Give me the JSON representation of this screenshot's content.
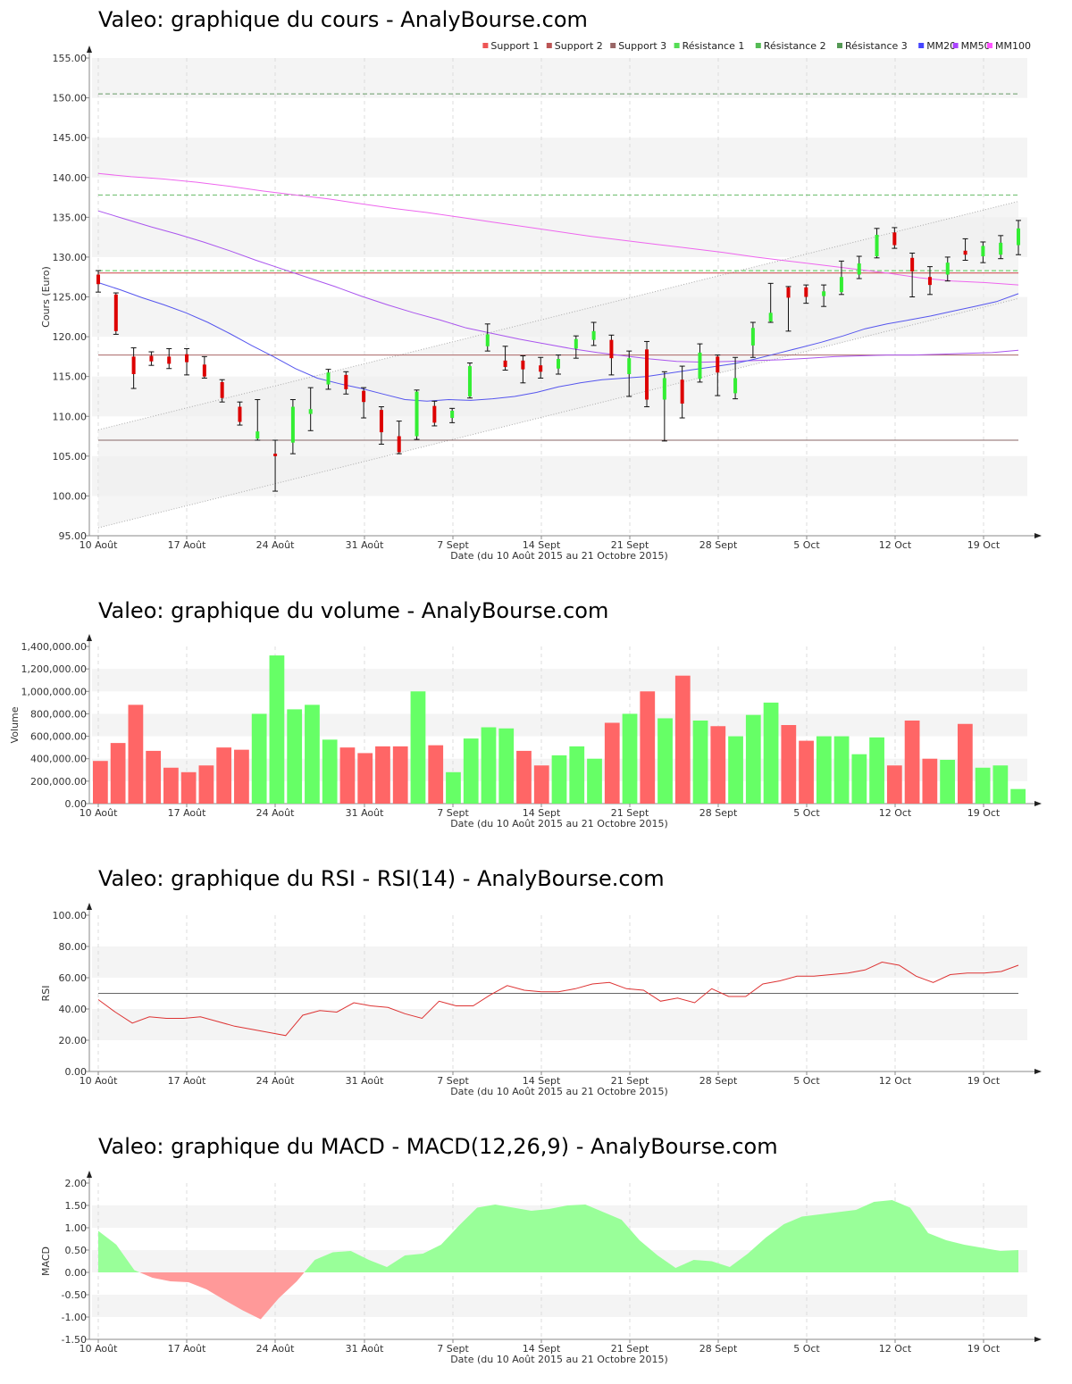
{
  "panels": {
    "price": {
      "title": "Valeo: graphique du cours - AnalyBourse.com"
    },
    "volume": {
      "title": "Valeo: graphique du volume - AnalyBourse.com"
    },
    "rsi": {
      "title": "Valeo: graphique du RSI - RSI(14) - AnalyBourse.com"
    },
    "macd": {
      "title": "Valeo: graphique du MACD - MACD(12,26,9) - AnalyBourse.com"
    }
  },
  "chart_data": [
    {
      "type": "candlestick",
      "title": "Valeo: graphique du cours - AnalyBourse.com",
      "xlabel": "Date (du 10 Août 2015 au 21 Octobre 2015)",
      "ylabel": "Cours (Euro)",
      "ylim": [
        95,
        155
      ],
      "yticks": [
        "95.00",
        "100.00",
        "105.00",
        "110.00",
        "115.00",
        "120.00",
        "125.00",
        "130.00",
        "135.00",
        "140.00",
        "145.00",
        "150.00",
        "155.00"
      ],
      "xticks": [
        "10 Août",
        "17 Août",
        "24 Août",
        "31 Août",
        "7 Sept",
        "14 Sept",
        "21 Sept",
        "28 Sept",
        "5 Oct",
        "12 Oct",
        "19 Oct"
      ],
      "legend": [
        "Support 1",
        "Support 2",
        "Support 3",
        "Résistance 1",
        "Résistance 2",
        "Résistance 3",
        "MM20",
        "MM50",
        "MM100"
      ],
      "legend_position": "top-right",
      "colors": {
        "up": "#33ee33",
        "down": "#dd0000",
        "support1": "#cc4444",
        "support2": "#aa6666",
        "support3": "#886666",
        "resistance1": "#55cc55",
        "resistance2": "#66bb66",
        "resistance3": "#669966",
        "mm20": "#5555ee",
        "mm50": "#aa55ee",
        "mm100": "#ee66ee",
        "legend_support1": "#ee5555",
        "legend_support2": "#bb5555",
        "legend_support3": "#996666",
        "legend_resistance1": "#55dd55",
        "legend_resistance2": "#55bb55",
        "legend_resistance3": "#559955",
        "legend_mm20": "#4444ff",
        "legend_mm50": "#aa44ff",
        "legend_mm100": "#ff55ff"
      },
      "levels": {
        "support1": 128.0,
        "support2": 117.7,
        "support3": 107.0,
        "resistance1": 128.3,
        "resistance2": 137.8,
        "resistance3": 150.5
      },
      "channel": {
        "upper": [
          108.3,
          137.0
        ],
        "lower": [
          96.0,
          124.8
        ]
      },
      "candles": [
        {
          "o": 127.8,
          "h": 128.3,
          "l": 125.6,
          "c": 126.6
        },
        {
          "o": 125.3,
          "h": 125.5,
          "l": 120.3,
          "c": 120.7
        },
        {
          "o": 117.5,
          "h": 118.6,
          "l": 113.5,
          "c": 115.3
        },
        {
          "o": 117.6,
          "h": 118.1,
          "l": 116.4,
          "c": 116.9
        },
        {
          "o": 117.5,
          "h": 118.5,
          "l": 116.0,
          "c": 116.6
        },
        {
          "o": 117.8,
          "h": 118.5,
          "l": 115.2,
          "c": 116.8
        },
        {
          "o": 116.5,
          "h": 117.5,
          "l": 114.8,
          "c": 115.0
        },
        {
          "o": 114.3,
          "h": 114.6,
          "l": 111.8,
          "c": 112.3
        },
        {
          "o": 111.2,
          "h": 111.8,
          "l": 108.9,
          "c": 109.3
        },
        {
          "o": 107.2,
          "h": 112.1,
          "l": 107.0,
          "c": 108.1
        },
        {
          "o": 105.3,
          "h": 107.0,
          "l": 100.6,
          "c": 105.0
        },
        {
          "o": 106.7,
          "h": 112.1,
          "l": 105.3,
          "c": 111.2
        },
        {
          "o": 110.3,
          "h": 113.6,
          "l": 108.2,
          "c": 110.9
        },
        {
          "o": 114.0,
          "h": 115.9,
          "l": 113.4,
          "c": 115.5
        },
        {
          "o": 115.2,
          "h": 115.6,
          "l": 112.8,
          "c": 113.4
        },
        {
          "o": 113.2,
          "h": 113.6,
          "l": 109.8,
          "c": 111.8
        },
        {
          "o": 110.8,
          "h": 111.2,
          "l": 106.5,
          "c": 108.0
        },
        {
          "o": 107.5,
          "h": 109.4,
          "l": 105.3,
          "c": 105.5
        },
        {
          "o": 107.5,
          "h": 113.3,
          "l": 107.1,
          "c": 113.1
        },
        {
          "o": 111.3,
          "h": 111.9,
          "l": 108.8,
          "c": 109.2
        },
        {
          "o": 109.8,
          "h": 111.0,
          "l": 109.2,
          "c": 110.7
        },
        {
          "o": 112.5,
          "h": 116.7,
          "l": 112.3,
          "c": 116.3
        },
        {
          "o": 118.8,
          "h": 121.6,
          "l": 118.2,
          "c": 120.3
        },
        {
          "o": 117.0,
          "h": 118.8,
          "l": 115.8,
          "c": 116.2
        },
        {
          "o": 117.0,
          "h": 117.6,
          "l": 114.2,
          "c": 115.9
        },
        {
          "o": 116.4,
          "h": 117.4,
          "l": 114.8,
          "c": 115.6
        },
        {
          "o": 116.0,
          "h": 117.7,
          "l": 115.3,
          "c": 117.2
        },
        {
          "o": 118.5,
          "h": 120.1,
          "l": 117.3,
          "c": 119.7
        },
        {
          "o": 119.6,
          "h": 121.8,
          "l": 118.9,
          "c": 120.7
        },
        {
          "o": 119.6,
          "h": 120.2,
          "l": 115.2,
          "c": 117.3
        },
        {
          "o": 115.3,
          "h": 118.2,
          "l": 112.5,
          "c": 117.3
        },
        {
          "o": 118.4,
          "h": 119.4,
          "l": 111.2,
          "c": 112.1
        },
        {
          "o": 112.1,
          "h": 115.6,
          "l": 106.9,
          "c": 114.8
        },
        {
          "o": 114.6,
          "h": 116.3,
          "l": 109.8,
          "c": 111.6
        },
        {
          "o": 114.7,
          "h": 119.1,
          "l": 114.3,
          "c": 118.0
        },
        {
          "o": 117.5,
          "h": 117.7,
          "l": 112.6,
          "c": 115.5
        },
        {
          "o": 112.9,
          "h": 117.4,
          "l": 112.2,
          "c": 114.8
        },
        {
          "o": 118.9,
          "h": 121.8,
          "l": 117.4,
          "c": 121.1
        },
        {
          "o": 121.9,
          "h": 126.7,
          "l": 121.8,
          "c": 123.0
        },
        {
          "o": 126.2,
          "h": 126.3,
          "l": 120.7,
          "c": 124.9
        },
        {
          "o": 126.2,
          "h": 126.5,
          "l": 124.2,
          "c": 125.0
        },
        {
          "o": 125.1,
          "h": 126.5,
          "l": 123.8,
          "c": 125.7
        },
        {
          "o": 125.6,
          "h": 129.5,
          "l": 125.3,
          "c": 127.5
        },
        {
          "o": 127.8,
          "h": 130.1,
          "l": 127.3,
          "c": 129.2
        },
        {
          "o": 130.1,
          "h": 133.6,
          "l": 129.9,
          "c": 132.8
        },
        {
          "o": 133.1,
          "h": 133.7,
          "l": 131.1,
          "c": 131.5
        },
        {
          "o": 129.9,
          "h": 130.5,
          "l": 125.0,
          "c": 128.2
        },
        {
          "o": 127.5,
          "h": 128.8,
          "l": 125.3,
          "c": 126.5
        },
        {
          "o": 127.8,
          "h": 130.0,
          "l": 127.0,
          "c": 129.3
        },
        {
          "o": 130.8,
          "h": 132.3,
          "l": 129.6,
          "c": 130.3
        },
        {
          "o": 130.1,
          "h": 131.9,
          "l": 129.3,
          "c": 131.4
        },
        {
          "o": 130.3,
          "h": 132.7,
          "l": 129.8,
          "c": 131.8
        },
        {
          "o": 131.5,
          "h": 134.6,
          "l": 130.3,
          "c": 133.6
        }
      ],
      "mm20": [
        126.8,
        125.9,
        124.9,
        124.0,
        123.0,
        121.8,
        120.4,
        118.9,
        117.5,
        116.0,
        114.8,
        114.1,
        113.5,
        112.8,
        112.1,
        111.9,
        112.1,
        112.0,
        112.2,
        112.5,
        113.0,
        113.7,
        114.2,
        114.6,
        114.8,
        115.0,
        115.4,
        115.8,
        116.2,
        116.6,
        117.2,
        117.9,
        118.6,
        119.3,
        120.1,
        121.0,
        121.6,
        122.1,
        122.6,
        123.2,
        123.8,
        124.4,
        125.4
      ],
      "mm50": [
        135.8,
        134.8,
        133.8,
        132.9,
        131.9,
        130.8,
        129.6,
        128.5,
        127.4,
        126.3,
        125.1,
        124.0,
        123.0,
        122.1,
        121.1,
        120.4,
        119.7,
        119.1,
        118.5,
        118.0,
        117.6,
        117.2,
        116.9,
        116.8,
        116.9,
        117.0,
        117.1,
        117.3,
        117.5,
        117.6,
        117.7,
        117.7,
        117.8,
        117.9,
        118.0,
        118.3
      ],
      "mm100": [
        140.5,
        140.1,
        139.8,
        139.4,
        138.9,
        138.3,
        137.8,
        137.3,
        136.7,
        136.1,
        135.6,
        135.0,
        134.4,
        133.8,
        133.2,
        132.6,
        132.1,
        131.6,
        131.1,
        130.6,
        130.0,
        129.5,
        129.0,
        128.5,
        128.0,
        127.4,
        127.0,
        126.8,
        126.5
      ]
    },
    {
      "type": "bar",
      "title": "Valeo: graphique du volume - AnalyBourse.com",
      "xlabel": "Date (du 10 Août 2015 au 21 Octobre 2015)",
      "ylabel": "Volume",
      "ylim": [
        0,
        1400000
      ],
      "yticks": [
        "0.00",
        "200,000.00",
        "400,000.00",
        "600,000.00",
        "800,000.00",
        "1,000,000.00",
        "1,200,000.00",
        "1,400,000.00"
      ],
      "xticks": [
        "10 Août",
        "17 Août",
        "24 Août",
        "31 Août",
        "7 Sept",
        "14 Sept",
        "21 Sept",
        "28 Sept",
        "5 Oct",
        "12 Oct",
        "19 Oct"
      ],
      "colors": {
        "up": "#66ff66",
        "down": "#ff6666"
      },
      "values": [
        380000,
        540000,
        880000,
        470000,
        320000,
        280000,
        340000,
        500000,
        480000,
        800000,
        1320000,
        840000,
        880000,
        570000,
        500000,
        450000,
        510000,
        510000,
        1000000,
        520000,
        280000,
        580000,
        680000,
        670000,
        470000,
        340000,
        430000,
        510000,
        400000,
        720000,
        800000,
        1000000,
        760000,
        1140000,
        740000,
        690000,
        600000,
        790000,
        900000,
        700000,
        560000,
        600000,
        600000,
        440000,
        590000,
        340000,
        740000,
        400000,
        390000,
        710000,
        320000,
        340000,
        130000
      ],
      "direction": [
        "d",
        "d",
        "d",
        "d",
        "d",
        "d",
        "d",
        "d",
        "d",
        "u",
        "u",
        "u",
        "u",
        "u",
        "d",
        "d",
        "d",
        "d",
        "u",
        "d",
        "u",
        "u",
        "u",
        "u",
        "d",
        "d",
        "u",
        "u",
        "u",
        "d",
        "u",
        "d",
        "u",
        "d",
        "u",
        "d",
        "u",
        "u",
        "u",
        "d",
        "d",
        "u",
        "u",
        "u",
        "u",
        "d",
        "d",
        "d",
        "u",
        "d",
        "u",
        "u",
        "u"
      ]
    },
    {
      "type": "line",
      "title": "Valeo: graphique du RSI - RSI(14) - AnalyBourse.com",
      "xlabel": "Date (du 10 Août 2015 au 21 Octobre 2015)",
      "ylabel": "RSI",
      "ylim": [
        0,
        100
      ],
      "yticks": [
        "0.00",
        "20.00",
        "40.00",
        "60.00",
        "80.00",
        "100.00"
      ],
      "xticks": [
        "10 Août",
        "17 Août",
        "24 Août",
        "31 Août",
        "7 Sept",
        "14 Sept",
        "21 Sept",
        "28 Sept",
        "5 Oct",
        "12 Oct",
        "19 Oct"
      ],
      "reference": 50,
      "colors": {
        "line": "#dd3333",
        "reference": "#666666"
      },
      "values": [
        46,
        38,
        31,
        35,
        34,
        34,
        35,
        32,
        29,
        27,
        25,
        23,
        36,
        39,
        38,
        44,
        42,
        41,
        37,
        34,
        45,
        42,
        42,
        49,
        55,
        52,
        51,
        51,
        53,
        56,
        57,
        53,
        52,
        45,
        47,
        44,
        53,
        48,
        48,
        56,
        58,
        61,
        61,
        62,
        63,
        65,
        70,
        68,
        61,
        57,
        62,
        63,
        63,
        64,
        68
      ]
    },
    {
      "type": "area",
      "title": "Valeo: graphique du MACD - MACD(12,26,9) - AnalyBourse.com",
      "xlabel": "Date (du 10 Août 2015 au 21 Octobre 2015)",
      "ylabel": "MACD",
      "ylim": [
        -1.5,
        2.0
      ],
      "yticks": [
        "-1.50",
        "-1.00",
        "-0.50",
        "0.00",
        "0.50",
        "1.00",
        "1.50",
        "2.00"
      ],
      "xticks": [
        "10 Août",
        "17 Août",
        "24 Août",
        "31 Août",
        "7 Sept",
        "14 Sept",
        "21 Sept",
        "28 Sept",
        "5 Oct",
        "12 Oct",
        "19 Oct"
      ],
      "colors": {
        "positive": "#99ff99",
        "negative": "#ff9999"
      },
      "values": [
        0.93,
        0.62,
        0.05,
        -0.12,
        -0.2,
        -0.22,
        -0.38,
        -0.62,
        -0.85,
        -1.05,
        -0.58,
        -0.2,
        0.28,
        0.45,
        0.48,
        0.28,
        0.12,
        0.38,
        0.42,
        0.62,
        1.05,
        1.45,
        1.52,
        1.45,
        1.38,
        1.42,
        1.5,
        1.52,
        1.35,
        1.18,
        0.72,
        0.38,
        0.1,
        0.28,
        0.25,
        0.12,
        0.42,
        0.78,
        1.08,
        1.25,
        1.3,
        1.35,
        1.4,
        1.58,
        1.62,
        1.45,
        0.88,
        0.72,
        0.62,
        0.55,
        0.48,
        0.5
      ]
    }
  ]
}
